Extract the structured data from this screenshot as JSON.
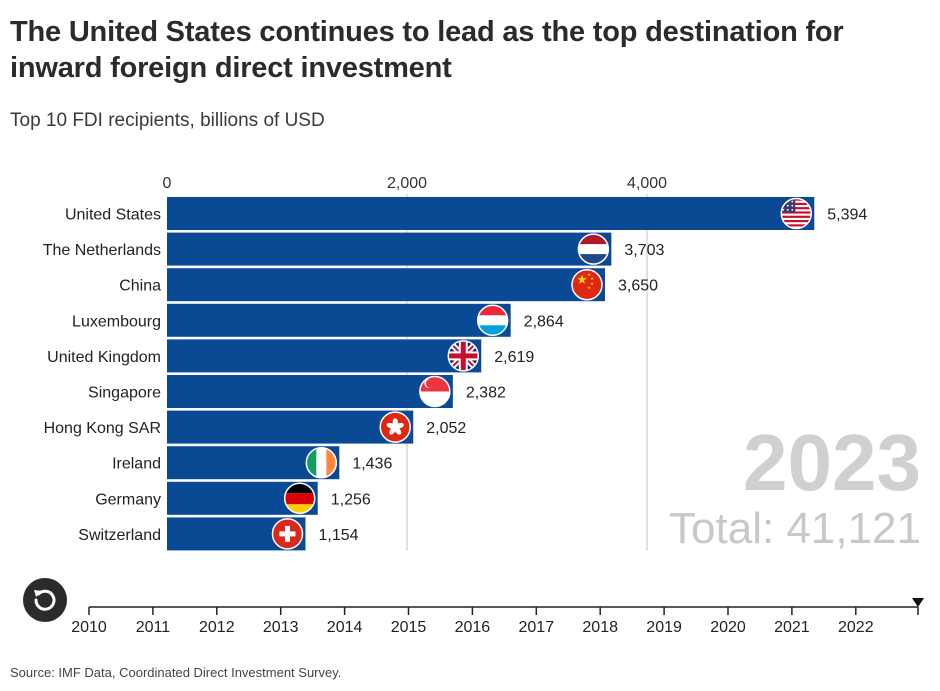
{
  "title": "The United States continues to lead as the top destination for inward foreign direct investment",
  "subtitle": "Top 10 FDI recipients, billions of USD",
  "source": "Source: IMF Data, Coordinated Direct Investment Survey.",
  "colors": {
    "bar": "#0a4a94",
    "grid": "#d9d9d9",
    "year": "#d0d0d0",
    "total": "#c8c8c8"
  },
  "chart_data": {
    "type": "bar",
    "orientation": "horizontal",
    "categories": [
      "United States",
      "The Netherlands",
      "China",
      "Luxembourg",
      "United Kingdom",
      "Singapore",
      "Hong Kong SAR",
      "Ireland",
      "Germany",
      "Switzerland"
    ],
    "values": [
      5394,
      3703,
      3650,
      2864,
      2619,
      2382,
      2052,
      1436,
      1256,
      1154
    ],
    "value_labels": [
      "5,394",
      "3,703",
      "3,650",
      "2,864",
      "2,619",
      "2,382",
      "2,052",
      "1,436",
      "1,256",
      "1,154"
    ],
    "flags": [
      "us-flag-icon",
      "netherlands-flag-icon",
      "china-flag-icon",
      "luxembourg-flag-icon",
      "uk-flag-icon",
      "singapore-flag-icon",
      "hongkong-flag-icon",
      "ireland-flag-icon",
      "germany-flag-icon",
      "switzerland-flag-icon"
    ],
    "xlim": [
      0,
      6400
    ],
    "xticks": [
      0,
      2000,
      4000
    ],
    "xtick_labels": [
      "0",
      "2,000",
      "4,000"
    ],
    "axis_position": "top",
    "year": "2023",
    "total_label": "Total: 41,121"
  },
  "timeline": {
    "years": [
      "2010",
      "2011",
      "2012",
      "2013",
      "2014",
      "2015",
      "2016",
      "2017",
      "2018",
      "2019",
      "2020",
      "2021",
      "2022"
    ],
    "current": "2023"
  }
}
